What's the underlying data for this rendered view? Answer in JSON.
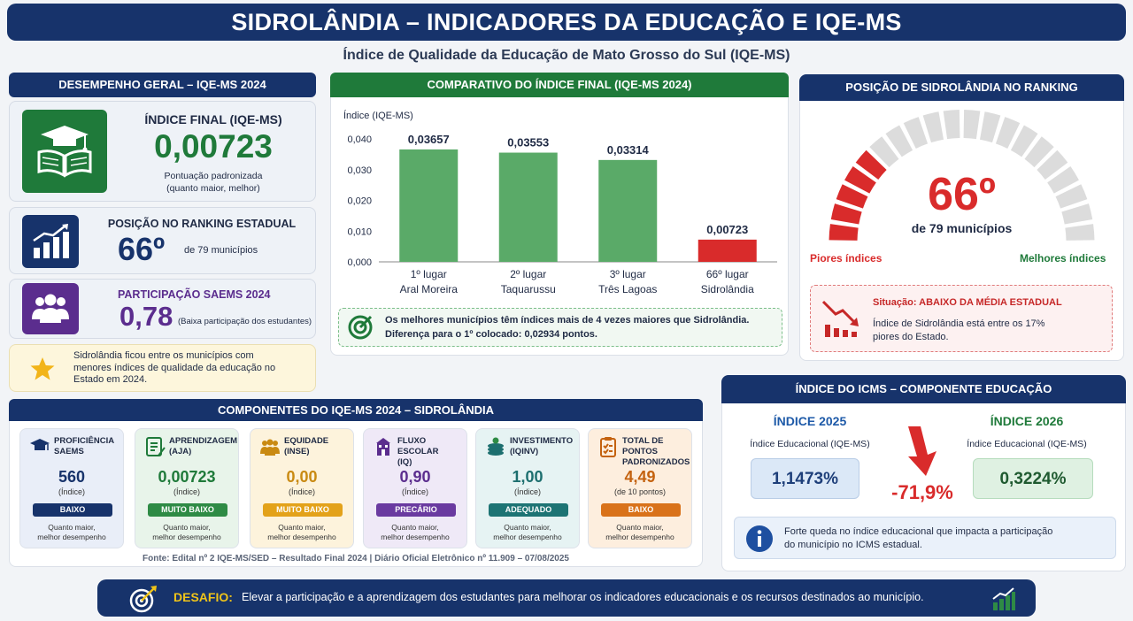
{
  "header": {
    "title": "SIDROLÂNDIA – INDICADORES DA EDUCAÇÃO E IQE-MS",
    "subtitle": "Índice de Qualidade da Educação de Mato Grosso do Sul (IQE-MS)"
  },
  "desempenho": {
    "heading": "DESEMPENHO GERAL – IQE-MS 2024",
    "indice_label": "ÍNDICE FINAL (IQE-MS)",
    "indice_value": "0,00723",
    "indice_note1": "Pontuação padronizada",
    "indice_note2": "(quanto maior, melhor)",
    "ranking_label": "POSIÇÃO NO RANKING ESTADUAL",
    "ranking_value": "66º",
    "ranking_note": "de 79 municípios",
    "particip_label": "PARTICIPAÇÃO SAEMS 2024",
    "particip_value": "0,78",
    "particip_note": "(Baixa participação dos estudantes)",
    "note_line1": "Sidrolândia ficou entre os municípios com",
    "note_line2": "menores índices de qualidade da educação no",
    "note_line3": "Estado em 2024.",
    "colors": {
      "green": "#1f7a3a",
      "navy": "#17336b",
      "purple": "#5b2d8e"
    }
  },
  "comparativo": {
    "heading": "COMPARATIVO DO ÍNDICE FINAL (IQE-MS 2024)",
    "note_line1": "Os melhores municípios têm índices mais de 4 vezes maiores que Sidrolândia.",
    "note_line2": "Diferença para o 1º colocado: 0,02934 pontos."
  },
  "chart_data": {
    "type": "bar",
    "ylabel": "Índice (IQE-MS)",
    "ylim": [
      0,
      0.04
    ],
    "yticks": [
      "0,000",
      "0,010",
      "0,020",
      "0,030",
      "0,040"
    ],
    "categories": [
      {
        "place": "1º lugar",
        "name": "Aral Moreira"
      },
      {
        "place": "2º lugar",
        "name": "Taquarussu"
      },
      {
        "place": "3º lugar",
        "name": "Três Lagoas"
      },
      {
        "place": "66º lugar",
        "name": "Sidrolândia"
      }
    ],
    "values": [
      0.03657,
      0.03553,
      0.03314,
      0.00723
    ],
    "labels": [
      "0,03657",
      "0,03553",
      "0,03314",
      "0,00723"
    ],
    "colors": [
      "#5aaa68",
      "#5aaa68",
      "#5aaa68",
      "#d92b2b"
    ]
  },
  "ranking": {
    "heading": "POSIÇÃO DE SIDROLÂNDIA NO RANKING",
    "position": "66º",
    "of_total": "de 79 municípios",
    "left_label": "Piores índices",
    "right_label": "Melhores índices",
    "gauge_total_segments": 20,
    "gauge_red_segments": 5,
    "situacao_prefix": "Situação: ",
    "situacao_value": "ABAIXO DA MÉDIA ESTADUAL",
    "situacao_line1": "Índice de Sidrolândia está entre os 17%",
    "situacao_line2": "piores do Estado."
  },
  "icms": {
    "heading": "ÍNDICE DO ICMS – COMPONENTE EDUCAÇÃO",
    "y2025_label": "ÍNDICE 2025",
    "y2025_sub": "Índice Educacional (IQE-MS)",
    "y2025_value": "1,1473%",
    "change": "-71,9%",
    "y2026_label": "ÍNDICE 2026",
    "y2026_sub": "Índice Educacional (IQE-MS)",
    "y2026_value": "0,3224%",
    "info_line1": "Forte queda no índice educacional que impacta a participação",
    "info_line2": "do município no ICMS estadual."
  },
  "componentes": {
    "heading": "COMPONENTES DO IQE-MS 2024 – SIDROLÂNDIA",
    "items": [
      {
        "t1": "PROFICIÊNCIA",
        "t2": "SAEMS",
        "value": "560",
        "sub": "(Índice)",
        "badge": "BAIXO",
        "n1": "Quanto maior,",
        "n2": "melhor desempenho",
        "bg": "#e9eef8",
        "accent": "#17336b",
        "badge_color": "#17336b",
        "icon": "graduation-cap-icon"
      },
      {
        "t1": "APRENDIZAGEM",
        "t2": "(AJA)",
        "value": "0,00723",
        "sub": "(Índice)",
        "badge": "MUITO BAIXO",
        "n1": "Quanto maior,",
        "n2": "melhor desempenho",
        "bg": "#e8f4ea",
        "accent": "#1f7a3a",
        "badge_color": "#2e8b45",
        "icon": "checklist-icon"
      },
      {
        "t1": "EQUIDADE",
        "t2": "(INSE)",
        "value": "0,00",
        "sub": "(Índice)",
        "badge": "MUITO BAIXO",
        "n1": "Quanto maior,",
        "n2": "melhor desempenho",
        "bg": "#fdf3dc",
        "accent": "#c98a12",
        "badge_color": "#e3a21a",
        "icon": "people-icon"
      },
      {
        "t1": "FLUXO ESCOLAR",
        "t2": "(IQ)",
        "value": "0,90",
        "sub": "(Índice)",
        "badge": "PRECÁRIO",
        "n1": "Quanto maior,",
        "n2": "melhor desempenho",
        "bg": "#efe9f7",
        "accent": "#5b2d8e",
        "badge_color": "#6a3aa0",
        "icon": "school-icon"
      },
      {
        "t1": "INVESTIMENTO",
        "t2": "(IQINV)",
        "value": "1,00",
        "sub": "(Índice)",
        "badge": "ADEQUADO",
        "n1": "Quanto maior,",
        "n2": "melhor desempenho",
        "bg": "#e6f3f3",
        "accent": "#1d6f6f",
        "badge_color": "#1d7474",
        "icon": "coins-icon"
      },
      {
        "t1": "TOTAL DE PONTOS",
        "t2": "PADRONIZADOS",
        "value": "4,49",
        "sub": "(de 10 pontos)",
        "badge": "BAIXO",
        "n1": "Quanto maior,",
        "n2": "melhor desempenho",
        "bg": "#fdeede",
        "accent": "#c4620f",
        "badge_color": "#d9721a",
        "icon": "clipboard-icon"
      }
    ]
  },
  "fonte": "Fonte: Edital nº 2 IQE-MS/SED – Resultado Final 2024  |  Diário Oficial Eletrônico nº 11.909 – 07/08/2025",
  "desafio": {
    "label": "DESAFIO:",
    "text": "Elevar a participação e a aprendizagem dos estudantes para melhorar os indicadores educacionais e os recursos destinados ao município."
  }
}
